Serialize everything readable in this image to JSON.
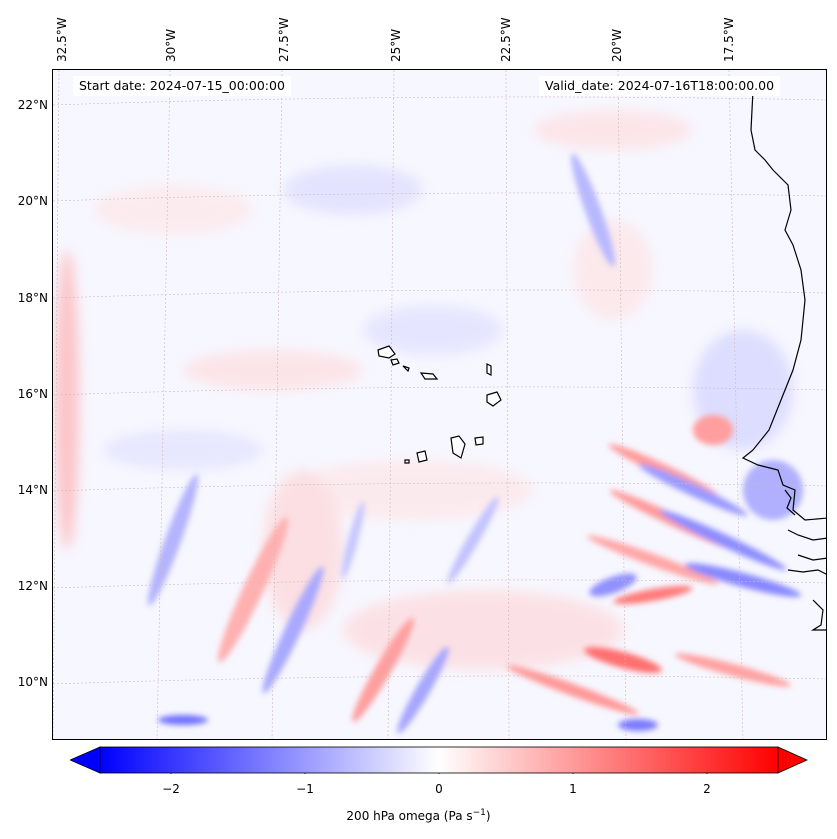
{
  "map": {
    "start_label": "Start date: 2024-07-15_00:00:00",
    "valid_label": "Valid_date: 2024-07-16T18:00:00.00",
    "lon_labels": [
      "32.5°W",
      "30°W",
      "27.5°W",
      "25°W",
      "22.5°W",
      "20°W",
      "17.5°W"
    ],
    "lat_labels": [
      "22°N",
      "20°N",
      "18°N",
      "16°N",
      "14°N",
      "12°N",
      "10°N"
    ],
    "variable": "200 hPa omega",
    "colormap": "bwr",
    "colors": {
      "negative": "#0000ff",
      "zero": "#ffffff",
      "positive": "#ff0000",
      "coast": "#000000",
      "grid": "#c8a8a8"
    }
  },
  "colorbar": {
    "ticks": [
      "−2",
      "−1",
      "0",
      "1",
      "2"
    ],
    "label": "200 hPa omega (Pa s",
    "label_sup": "−1",
    "label_end": ")",
    "range": [
      -2.6,
      2.6
    ]
  }
}
